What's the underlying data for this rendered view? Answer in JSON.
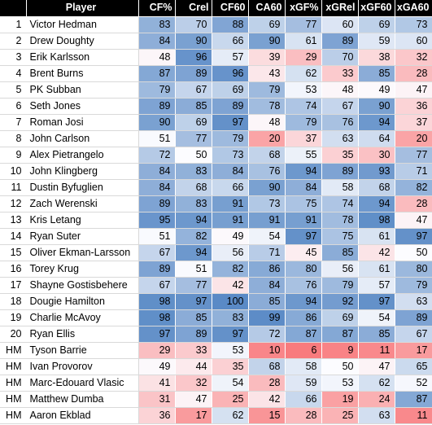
{
  "chart_data": {
    "type": "heatmap",
    "title": "",
    "header": {
      "rank": "",
      "player": "Player"
    },
    "columns": [
      "CF%",
      "Crel",
      "CF60",
      "CA60",
      "xGF%",
      "xGRel",
      "xGF60",
      "xGA60"
    ],
    "scale": {
      "min": 0,
      "max": 100,
      "low_color": "#f8696b",
      "mid_color": "#fcfcff",
      "high_color": "#5a8ac6"
    },
    "rows": [
      {
        "rank": "1",
        "player": "Victor Hedman",
        "values": [
          83,
          70,
          88,
          69,
          77,
          60,
          69,
          73
        ]
      },
      {
        "rank": "2",
        "player": "Drew Doughty",
        "values": [
          84,
          90,
          66,
          90,
          61,
          89,
          59,
          60
        ]
      },
      {
        "rank": "3",
        "player": "Erik Karlsson",
        "values": [
          48,
          96,
          57,
          39,
          29,
          70,
          38,
          32
        ]
      },
      {
        "rank": "4",
        "player": "Brent Burns",
        "values": [
          87,
          89,
          96,
          43,
          62,
          33,
          85,
          28
        ]
      },
      {
        "rank": "5",
        "player": "PK Subban",
        "values": [
          79,
          67,
          69,
          79,
          53,
          48,
          49,
          47
        ]
      },
      {
        "rank": "6",
        "player": "Seth Jones",
        "values": [
          89,
          85,
          89,
          78,
          74,
          67,
          90,
          36
        ]
      },
      {
        "rank": "7",
        "player": "Roman Josi",
        "values": [
          90,
          69,
          97,
          48,
          79,
          76,
          94,
          37
        ]
      },
      {
        "rank": "8",
        "player": "John Carlson",
        "values": [
          51,
          77,
          79,
          20,
          37,
          63,
          64,
          20
        ]
      },
      {
        "rank": "9",
        "player": "Alex Pietrangelo",
        "values": [
          72,
          50,
          73,
          68,
          55,
          35,
          30,
          77
        ]
      },
      {
        "rank": "10",
        "player": "John Klingberg",
        "values": [
          84,
          83,
          84,
          76,
          94,
          89,
          93,
          71
        ]
      },
      {
        "rank": "11",
        "player": "Dustin Byfuglien",
        "values": [
          84,
          68,
          66,
          90,
          84,
          58,
          68,
          82
        ]
      },
      {
        "rank": "12",
        "player": "Zach Werenski",
        "values": [
          89,
          83,
          91,
          73,
          75,
          74,
          94,
          28
        ]
      },
      {
        "rank": "13",
        "player": "Kris Letang",
        "values": [
          95,
          94,
          91,
          91,
          91,
          78,
          98,
          47
        ]
      },
      {
        "rank": "14",
        "player": "Ryan Suter",
        "values": [
          51,
          82,
          49,
          54,
          97,
          75,
          61,
          97
        ]
      },
      {
        "rank": "15",
        "player": "Oliver Ekman-Larsson",
        "values": [
          67,
          94,
          56,
          71,
          45,
          85,
          42,
          50
        ]
      },
      {
        "rank": "16",
        "player": "Torey Krug",
        "values": [
          89,
          51,
          82,
          86,
          80,
          56,
          61,
          80
        ]
      },
      {
        "rank": "17",
        "player": "Shayne Gostisbehere",
        "values": [
          67,
          77,
          42,
          84,
          76,
          79,
          57,
          79
        ]
      },
      {
        "rank": "18",
        "player": "Dougie Hamilton",
        "values": [
          98,
          97,
          100,
          85,
          94,
          92,
          97,
          63
        ]
      },
      {
        "rank": "19",
        "player": "Charlie McAvoy",
        "values": [
          98,
          85,
          83,
          99,
          86,
          69,
          54,
          89
        ]
      },
      {
        "rank": "20",
        "player": "Ryan Ellis",
        "values": [
          97,
          89,
          97,
          72,
          87,
          87,
          85,
          67
        ]
      },
      {
        "rank": "HM",
        "player": "Tyson Barrie",
        "values": [
          29,
          33,
          53,
          10,
          6,
          9,
          11,
          17
        ]
      },
      {
        "rank": "HM",
        "player": "Ivan Provorov",
        "values": [
          49,
          44,
          35,
          68,
          58,
          50,
          47,
          65
        ]
      },
      {
        "rank": "HM",
        "player": "Marc-Edouard Vlasic",
        "values": [
          41,
          32,
          54,
          28,
          59,
          53,
          62,
          52
        ]
      },
      {
        "rank": "HM",
        "player": "Matthew Dumba",
        "values": [
          31,
          47,
          25,
          42,
          66,
          19,
          24,
          87
        ]
      },
      {
        "rank": "HM",
        "player": "Aaron Ekblad",
        "values": [
          36,
          17,
          62,
          15,
          28,
          25,
          63,
          11
        ]
      }
    ]
  }
}
